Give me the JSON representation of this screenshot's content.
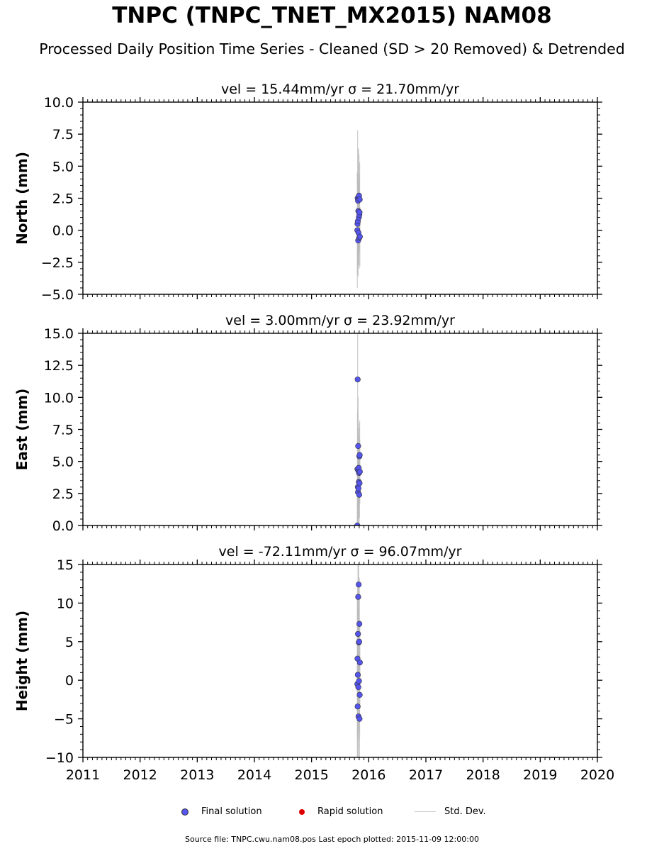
{
  "figure": {
    "title": "TNPC (TNPC_TNET_MX2015) NAM08",
    "subtitle": "Processed Daily Position Time Series - Cleaned (SD > 20 Removed) & Detrended",
    "footer": "Source file: TNPC.cwu.nam08.pos  Last epoch plotted: 2015-11-09 12:00:00"
  },
  "legend": {
    "final": "Final solution",
    "rapid": "Rapid solution",
    "std": "Std. Dev."
  },
  "colors": {
    "final": "#5555ee",
    "rapid": "#dd0000",
    "std": "#bbbbbb"
  },
  "chart_data": [
    {
      "type": "scatter",
      "title": "vel = 15.44mm/yr   σ = 21.70mm/yr",
      "ylabel": "North (mm)",
      "xlim": [
        2011,
        2020
      ],
      "ylim": [
        -5,
        10
      ],
      "yticks": [
        -5.0,
        -2.5,
        0.0,
        2.5,
        5.0,
        7.5,
        10.0
      ],
      "ytick_labels": [
        "−5.0",
        "−2.5",
        "0.0",
        "2.5",
        "5.0",
        "7.5",
        "10.0"
      ],
      "series": [
        {
          "name": "Final solution",
          "x": [
            2015.8,
            2015.803,
            2015.806,
            2015.809,
            2015.812,
            2015.815,
            2015.818,
            2015.821,
            2015.824,
            2015.827,
            2015.83,
            2015.833,
            2015.836,
            2015.839,
            2015.842,
            2015.845
          ],
          "y": [
            0.0,
            0.5,
            2.5,
            0.7,
            2.3,
            -0.8,
            1.5,
            -0.2,
            2.6,
            1.0,
            2.7,
            -0.6,
            1.2,
            1.4,
            2.4,
            -0.5
          ],
          "sd": [
            4.5,
            4.0,
            5.3,
            3.2,
            4.0,
            2.8,
            3.5,
            2.5,
            3.8,
            2.9,
            3.2,
            2.4,
            2.7,
            3.0,
            2.9,
            2.3
          ]
        }
      ]
    },
    {
      "type": "scatter",
      "title": "vel = 3.00mm/yr   σ = 23.92mm/yr",
      "ylabel": "East (mm)",
      "xlim": [
        2011,
        2020
      ],
      "ylim": [
        0,
        15
      ],
      "yticks": [
        0.0,
        2.5,
        5.0,
        7.5,
        10.0,
        12.5,
        15.0
      ],
      "ytick_labels": [
        "0.0",
        "2.5",
        "5.0",
        "7.5",
        "10.0",
        "12.5",
        "15.0"
      ],
      "series": [
        {
          "name": "Final solution",
          "x": [
            2015.8,
            2015.803,
            2015.806,
            2015.809,
            2015.812,
            2015.815,
            2015.818,
            2015.821,
            2015.824,
            2015.827,
            2015.83,
            2015.833,
            2015.836,
            2015.839,
            2015.842,
            2015.845
          ],
          "y": [
            0.0,
            4.4,
            11.4,
            3.0,
            2.6,
            6.2,
            4.3,
            2.9,
            4.5,
            3.4,
            4.1,
            2.4,
            5.4,
            3.3,
            5.5,
            4.2
          ],
          "sd": [
            4.2,
            4.5,
            5.0,
            3.6,
            3.2,
            3.8,
            3.0,
            3.0,
            3.1,
            2.8,
            2.8,
            2.6,
            2.6,
            2.7,
            2.7,
            2.5
          ]
        }
      ]
    },
    {
      "type": "scatter",
      "title": "vel = -72.11mm/yr   σ = 96.07mm/yr",
      "ylabel": "Height (mm)",
      "xlim": [
        2011,
        2020
      ],
      "ylim": [
        -10,
        15
      ],
      "yticks": [
        -10,
        -5,
        0,
        5,
        10,
        15
      ],
      "ytick_labels": [
        "−10",
        "−5",
        "0",
        "5",
        "10",
        "15"
      ],
      "series": [
        {
          "name": "Final solution",
          "x": [
            2015.8,
            2015.803,
            2015.806,
            2015.809,
            2015.812,
            2015.815,
            2015.818,
            2015.821,
            2015.824,
            2015.827,
            2015.83,
            2015.833,
            2015.836,
            2015.839,
            2015.842,
            2015.845
          ],
          "y": [
            -0.5,
            2.8,
            -3.4,
            0.7,
            6.0,
            10.8,
            -0.9,
            -4.7,
            12.4,
            4.9,
            -0.1,
            5.0,
            7.3,
            -5.0,
            -1.9,
            2.3
          ],
          "sd": [
            11.0,
            10.0,
            9.0,
            8.5,
            9.5,
            9.0,
            8.0,
            7.5,
            8.0,
            7.0,
            6.5,
            6.5,
            6.0,
            6.0,
            5.5,
            5.5
          ]
        }
      ]
    }
  ],
  "xaxis": {
    "ticks": [
      2011,
      2012,
      2013,
      2014,
      2015,
      2016,
      2017,
      2018,
      2019,
      2020
    ],
    "tick_labels": [
      "2011",
      "2012",
      "2013",
      "2014",
      "2015",
      "2016",
      "2017",
      "2018",
      "2019",
      "2020"
    ]
  }
}
